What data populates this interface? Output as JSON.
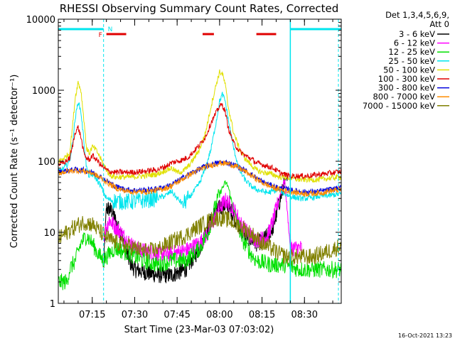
{
  "chart_data": {
    "type": "line",
    "title": "RHESSI Observing Summary Count Rates, Corrected",
    "xlabel": "Start Time (23-Mar-03 07:03:02)",
    "ylabel": "Corrected Count Rate (s⁻¹ detector⁻¹)",
    "yscale": "log",
    "ylim": [
      1,
      10000
    ],
    "xlim_minutes": [
      0,
      100
    ],
    "x_ticks": [
      {
        "label": "07:15",
        "minute": 12
      },
      {
        "label": "07:30",
        "minute": 27
      },
      {
        "label": "07:45",
        "minute": 42
      },
      {
        "label": "08:00",
        "minute": 57
      },
      {
        "label": "08:15",
        "minute": 72
      },
      {
        "label": "08:30",
        "minute": 87
      }
    ],
    "y_ticks": [
      {
        "label": "1",
        "value": 1
      },
      {
        "label": "10",
        "value": 10
      },
      {
        "label": "100",
        "value": 100
      },
      {
        "label": "1000",
        "value": 1000
      },
      {
        "label": "10000",
        "value": 10000
      }
    ],
    "legend_header": [
      "Det 1,3,4,5,6,9,",
      "Att 0"
    ],
    "legend_position": "right",
    "footer_date": "16-Oct-2021 13:23",
    "markers": {
      "night_label": "N",
      "flare_label": "F",
      "night_color": "#00e5ee",
      "flare_color": "#e00000",
      "night_bars": [
        [
          0,
          16
        ],
        [
          82,
          100
        ]
      ],
      "flare_bars": [
        [
          17,
          24
        ],
        [
          51,
          55
        ],
        [
          70,
          77
        ]
      ],
      "dashed_lines": [
        16,
        99
      ],
      "solid_line": 82
    },
    "series": [
      {
        "name": "3 - 6 keV",
        "color": "#000000",
        "x": [
          16,
          17,
          19,
          21,
          23,
          25,
          27,
          30,
          35,
          40,
          45,
          50,
          53,
          55,
          57,
          59,
          61,
          63,
          65,
          68,
          70,
          72,
          74,
          76,
          78,
          80,
          81
        ],
        "y": [
          3,
          22,
          20,
          12,
          8,
          4,
          3,
          2.8,
          2.5,
          2.5,
          3,
          6,
          12,
          18,
          22,
          24,
          20,
          14,
          10,
          8,
          7,
          7.5,
          9,
          12,
          25,
          50,
          60
        ]
      },
      {
        "name": "6 - 12 keV",
        "color": "#ff00ff",
        "x": [
          16,
          18,
          20,
          22,
          24,
          27,
          30,
          35,
          40,
          45,
          50,
          53,
          55,
          57,
          59,
          61,
          63,
          65,
          68,
          70,
          72,
          74,
          76,
          78,
          80,
          82,
          84,
          86
        ],
        "y": [
          9,
          15,
          12,
          10,
          8,
          6,
          5.5,
          5,
          5,
          5.5,
          7,
          10,
          15,
          22,
          28,
          24,
          18,
          12,
          9,
          8,
          8,
          9,
          15,
          30,
          55,
          6,
          6,
          6
        ]
      },
      {
        "name": "12 - 25 keV",
        "color": "#00e000",
        "x": [
          0,
          3,
          4,
          6,
          8,
          10,
          12,
          14,
          16,
          18,
          20,
          25,
          30,
          35,
          40,
          45,
          50,
          53,
          55,
          57,
          59,
          60,
          61,
          63,
          65,
          68,
          70,
          75,
          80,
          85,
          90,
          95,
          100
        ],
        "y": [
          2,
          2,
          3,
          4,
          7,
          9,
          7,
          5,
          4,
          5,
          6,
          5,
          4,
          3.5,
          4,
          4,
          6,
          10,
          20,
          35,
          50,
          45,
          30,
          15,
          8,
          5,
          4,
          3.5,
          3.5,
          3,
          3,
          3,
          3
        ]
      },
      {
        "name": "25 - 50 keV",
        "color": "#00e5ee",
        "x": [
          0,
          2,
          4,
          5,
          6,
          7,
          8,
          9,
          10,
          11,
          12,
          13,
          15,
          17,
          19,
          22,
          26,
          30,
          35,
          38,
          40,
          42,
          44,
          46,
          48,
          50,
          52,
          54,
          56,
          57,
          58,
          59,
          60,
          62,
          64,
          66,
          68,
          70,
          72,
          74,
          76,
          78,
          80,
          82,
          85,
          88,
          92,
          96,
          100
        ],
        "y": [
          70,
          80,
          100,
          180,
          400,
          700,
          500,
          200,
          80,
          60,
          65,
          60,
          45,
          30,
          28,
          27,
          27,
          28,
          30,
          33,
          38,
          30,
          25,
          30,
          38,
          50,
          80,
          150,
          400,
          700,
          880,
          700,
          400,
          150,
          75,
          55,
          45,
          40,
          38,
          36,
          38,
          40,
          35,
          32,
          30,
          30,
          32,
          33,
          35
        ]
      },
      {
        "name": "50 - 100 keV",
        "color": "#e0e000",
        "x": [
          0,
          2,
          4,
          5,
          6,
          7,
          8,
          9,
          10,
          11,
          12,
          13,
          14,
          16,
          18,
          20,
          23,
          26,
          30,
          35,
          38,
          40,
          42,
          44,
          46,
          48,
          50,
          52,
          54,
          56,
          57,
          58,
          59,
          60,
          62,
          64,
          66,
          68,
          70,
          72,
          74,
          76,
          78,
          80,
          82,
          85,
          88,
          92,
          96,
          100
        ],
        "y": [
          100,
          110,
          130,
          300,
          800,
          1300,
          1000,
          400,
          150,
          130,
          160,
          150,
          130,
          90,
          65,
          60,
          60,
          60,
          62,
          66,
          75,
          80,
          70,
          72,
          85,
          110,
          150,
          250,
          600,
          1300,
          1800,
          1700,
          1200,
          600,
          250,
          150,
          110,
          90,
          75,
          70,
          68,
          65,
          60,
          60,
          58,
          55,
          55,
          55,
          58,
          60
        ]
      },
      {
        "name": "100 - 300 keV",
        "color": "#e00000",
        "x": [
          0,
          2,
          4,
          5,
          6,
          7,
          8,
          9,
          10,
          11,
          12,
          13,
          14,
          16,
          18,
          20,
          23,
          26,
          30,
          35,
          38,
          40,
          42,
          44,
          46,
          48,
          50,
          52,
          54,
          56,
          57,
          58,
          59,
          60,
          62,
          64,
          66,
          68,
          70,
          72,
          74,
          76,
          78,
          80,
          82,
          85,
          88,
          92,
          96,
          100
        ],
        "y": [
          90,
          95,
          110,
          160,
          260,
          300,
          220,
          130,
          110,
          105,
          120,
          110,
          100,
          80,
          72,
          70,
          70,
          70,
          72,
          76,
          85,
          95,
          100,
          105,
          115,
          140,
          170,
          220,
          350,
          500,
          600,
          620,
          500,
          300,
          180,
          140,
          120,
          110,
          95,
          90,
          85,
          80,
          70,
          65,
          62,
          62,
          62,
          65,
          68,
          72
        ]
      },
      {
        "name": "300 - 800 keV",
        "color": "#0000dd",
        "x": [
          0,
          3,
          6,
          9,
          12,
          15,
          18,
          21,
          24,
          27,
          30,
          33,
          36,
          39,
          42,
          45,
          48,
          51,
          54,
          57,
          60,
          63,
          66,
          69,
          72,
          75,
          78,
          81,
          84,
          87,
          90,
          93,
          96,
          100
        ],
        "y": [
          70,
          74,
          76,
          75,
          70,
          60,
          50,
          43,
          40,
          39,
          39,
          40,
          42,
          45,
          52,
          62,
          72,
          82,
          90,
          96,
          95,
          86,
          74,
          62,
          52,
          46,
          42,
          40,
          38,
          37,
          37,
          38,
          40,
          42
        ]
      },
      {
        "name": "800 - 7000 keV",
        "color": "#ff8c00",
        "x": [
          0,
          3,
          6,
          9,
          12,
          15,
          18,
          21,
          24,
          27,
          30,
          33,
          36,
          39,
          42,
          45,
          48,
          51,
          54,
          57,
          60,
          63,
          66,
          69,
          72,
          75,
          78,
          81,
          84,
          87,
          90,
          93,
          96,
          100
        ],
        "y": [
          68,
          72,
          74,
          73,
          68,
          58,
          48,
          41,
          38,
          37,
          37,
          38,
          40,
          43,
          50,
          60,
          70,
          80,
          88,
          94,
          93,
          84,
          72,
          60,
          50,
          44,
          40,
          38,
          36,
          35,
          35,
          36,
          38,
          40
        ]
      },
      {
        "name": "7000 - 15000 keV",
        "color": "#808000",
        "x": [
          0,
          3,
          6,
          9,
          12,
          15,
          18,
          21,
          24,
          27,
          30,
          33,
          36,
          39,
          42,
          45,
          48,
          51,
          54,
          57,
          60,
          63,
          66,
          69,
          72,
          75,
          78,
          81,
          84,
          87,
          90,
          93,
          96,
          100
        ],
        "y": [
          8,
          10,
          12,
          14,
          13,
          10,
          8,
          7,
          6.5,
          6,
          5.5,
          5.5,
          6,
          7,
          8,
          9,
          11,
          13,
          15,
          16,
          15,
          13,
          11,
          9,
          7,
          6,
          5,
          4.5,
          4.5,
          4.5,
          4.5,
          5,
          5.5,
          6.5
        ]
      }
    ]
  }
}
